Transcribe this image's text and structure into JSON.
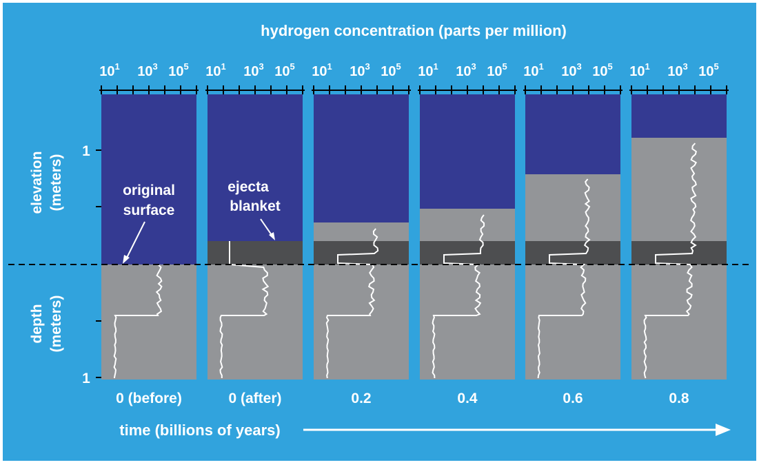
{
  "title": "hydrogen concentration (parts per million)",
  "tick_labels": [
    {
      "base": "10",
      "exponent": "1"
    },
    {
      "base": "10",
      "exponent": "3"
    },
    {
      "base": "10",
      "exponent": "5"
    }
  ],
  "elevation_axis": {
    "label": "elevation",
    "unit": "(meters)",
    "tick": "1"
  },
  "depth_axis": {
    "label": "depth",
    "unit": "(meters)",
    "tick": "1"
  },
  "annotations": [
    {
      "lines": [
        "original",
        "surface"
      ]
    },
    {
      "lines": [
        "ejecta",
        "blanket"
      ]
    }
  ],
  "panels": [
    {
      "label": "0 (before)"
    },
    {
      "label": "0 (after)"
    },
    {
      "label": "0.2"
    },
    {
      "label": "0.4"
    },
    {
      "label": "0.6"
    },
    {
      "label": "0.8"
    }
  ],
  "time_label": "time (billions of years)"
}
